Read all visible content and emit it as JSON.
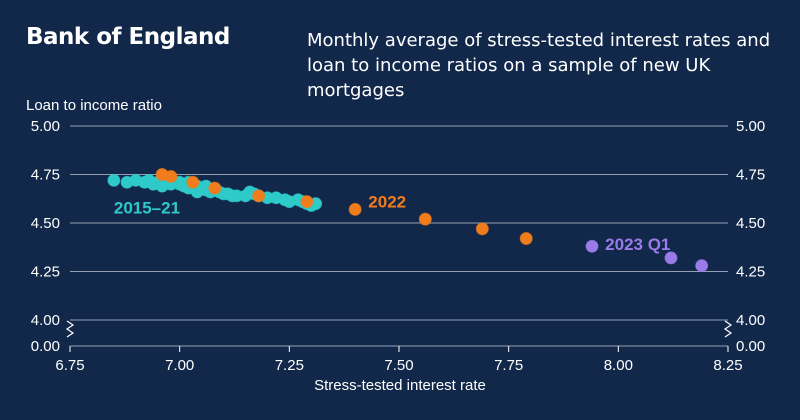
{
  "header": {
    "brand": "Bank of England",
    "title": "Monthly average of stress-tested interest rates and loan to income ratios on a sample of new UK mortgages"
  },
  "colors": {
    "background": "#12284a",
    "series_2015_21": "#2ec9c9",
    "series_2022": "#f07c1b",
    "series_2023q1": "#9b7bea",
    "grid": "#c0c8d4"
  },
  "chart_data": {
    "type": "scatter",
    "title": "Monthly average of stress-tested interest rates and loan to income ratios on a sample of new UK mortgages",
    "xlabel": "Stress-tested interest rate",
    "ylabel": "Loan to income ratio",
    "xlim": [
      6.75,
      8.25
    ],
    "ylim": [
      4.0,
      5.0
    ],
    "y_axis_break": {
      "from": 0.0,
      "to": 4.0
    },
    "x_ticks": [
      "6.75",
      "7.00",
      "7.25",
      "7.50",
      "7.75",
      "8.00",
      "8.25"
    ],
    "y_ticks": [
      "4.00",
      "4.25",
      "4.50",
      "4.75",
      "5.00"
    ],
    "y_zero_label": "0.00",
    "series": [
      {
        "name": "2015–21",
        "color": "#2ec9c9",
        "points": [
          [
            6.85,
            4.72
          ],
          [
            6.88,
            4.71
          ],
          [
            6.9,
            4.72
          ],
          [
            6.92,
            4.71
          ],
          [
            6.93,
            4.72
          ],
          [
            6.95,
            4.71
          ],
          [
            6.97,
            4.72
          ],
          [
            6.99,
            4.71
          ],
          [
            7.0,
            4.7
          ],
          [
            7.01,
            4.69
          ],
          [
            7.02,
            4.68
          ],
          [
            7.03,
            4.7
          ],
          [
            7.04,
            4.69
          ],
          [
            7.05,
            4.68
          ],
          [
            7.06,
            4.67
          ],
          [
            7.07,
            4.66
          ],
          [
            7.08,
            4.67
          ],
          [
            7.09,
            4.66
          ],
          [
            7.1,
            4.65
          ],
          [
            7.11,
            4.65
          ],
          [
            7.13,
            4.64
          ],
          [
            7.15,
            4.64
          ],
          [
            7.16,
            4.66
          ],
          [
            7.17,
            4.65
          ],
          [
            7.18,
            4.64
          ],
          [
            7.2,
            4.63
          ],
          [
            7.22,
            4.63
          ],
          [
            7.24,
            4.62
          ],
          [
            7.25,
            4.61
          ],
          [
            7.27,
            4.62
          ],
          [
            7.28,
            4.61
          ],
          [
            7.29,
            4.6
          ],
          [
            7.3,
            4.59
          ],
          [
            7.31,
            4.6
          ],
          [
            6.96,
            4.69
          ],
          [
            6.98,
            4.7
          ],
          [
            7.02,
            4.71
          ],
          [
            7.06,
            4.69
          ],
          [
            7.12,
            4.64
          ],
          [
            7.0,
            4.71
          ],
          [
            6.94,
            4.7
          ],
          [
            7.04,
            4.66
          ]
        ]
      },
      {
        "name": "2022",
        "color": "#f07c1b",
        "points": [
          [
            6.96,
            4.75
          ],
          [
            6.98,
            4.74
          ],
          [
            7.03,
            4.71
          ],
          [
            7.08,
            4.68
          ],
          [
            7.18,
            4.64
          ],
          [
            7.29,
            4.61
          ],
          [
            7.4,
            4.57
          ],
          [
            7.56,
            4.52
          ],
          [
            7.69,
            4.47
          ],
          [
            7.79,
            4.42
          ]
        ]
      },
      {
        "name": "2023 Q1",
        "color": "#9b7bea",
        "points": [
          [
            7.94,
            4.38
          ],
          [
            8.12,
            4.32
          ],
          [
            8.19,
            4.28
          ]
        ]
      }
    ],
    "annotations": [
      {
        "text": "2015–21",
        "series": "2015–21"
      },
      {
        "text": "2022",
        "series": "2022"
      },
      {
        "text": "2023 Q1",
        "series": "2023 Q1"
      }
    ]
  }
}
